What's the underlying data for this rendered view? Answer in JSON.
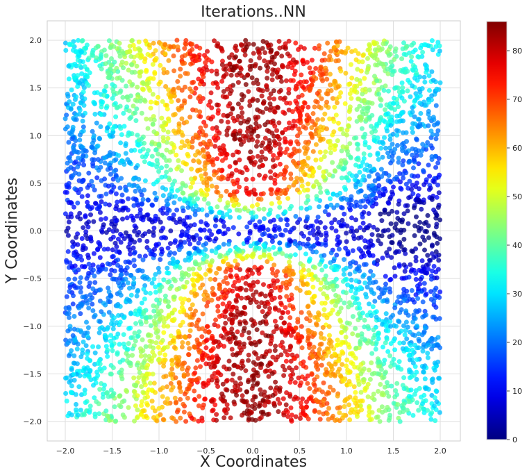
{
  "chart_data": {
    "type": "scatter",
    "title": "Iterations..NN",
    "xlabel": "X Coordinates",
    "ylabel": "Y Coordinates",
    "xlim": [
      -2.2,
      2.2
    ],
    "ylim": [
      -2.2,
      2.2
    ],
    "xticks": [
      -2.0,
      -1.5,
      -1.0,
      -0.5,
      0.0,
      0.5,
      1.0,
      1.5,
      2.0
    ],
    "yticks": [
      -2.0,
      -1.5,
      -1.0,
      -0.5,
      0.0,
      0.5,
      1.0,
      1.5,
      2.0
    ],
    "xtick_labels": [
      "−2.0",
      "−1.5",
      "−1.0",
      "−0.5",
      "0.0",
      "0.5",
      "1.0",
      "1.5",
      "2.0"
    ],
    "ytick_labels": [
      "−2.0",
      "−1.5",
      "−1.0",
      "−0.5",
      "0.0",
      "0.5",
      "1.0",
      "1.5",
      "2.0"
    ],
    "grid": true,
    "point_domain": [
      -2.0,
      2.0
    ],
    "colorbar": {
      "colormap": "jet",
      "range": [
        0,
        86
      ],
      "ticks": [
        0,
        10,
        20,
        30,
        40,
        50,
        60,
        70,
        80
      ],
      "tick_labels": [
        "0",
        "10",
        "20",
        "30",
        "40",
        "50",
        "60",
        "70",
        "80"
      ],
      "position": "right"
    },
    "value_field_samples": [
      {
        "x": 0.0,
        "y": 0.75,
        "value": 85
      },
      {
        "x": 0.0,
        "y": -0.6,
        "value": 85
      },
      {
        "x": 0.0,
        "y": 1.9,
        "value": 78
      },
      {
        "x": 0.0,
        "y": -1.9,
        "value": 78
      },
      {
        "x": 0.25,
        "y": 1.5,
        "value": 68
      },
      {
        "x": -0.35,
        "y": 1.5,
        "value": 58
      },
      {
        "x": -0.7,
        "y": 1.2,
        "value": 40
      },
      {
        "x": -1.0,
        "y": 0.9,
        "value": 30
      },
      {
        "x": -1.5,
        "y": 1.5,
        "value": 20
      },
      {
        "x": 1.5,
        "y": -1.5,
        "value": 22
      },
      {
        "x": -1.8,
        "y": 0.0,
        "value": 10
      },
      {
        "x": 0.0,
        "y": 0.0,
        "value": 12
      },
      {
        "x": 1.85,
        "y": 0.0,
        "value": 2
      },
      {
        "x": 1.0,
        "y": 0.3,
        "value": 8
      },
      {
        "x": -0.7,
        "y": -1.0,
        "value": 42
      },
      {
        "x": 0.6,
        "y": -1.0,
        "value": 45
      }
    ],
    "point_count": 5200
  }
}
